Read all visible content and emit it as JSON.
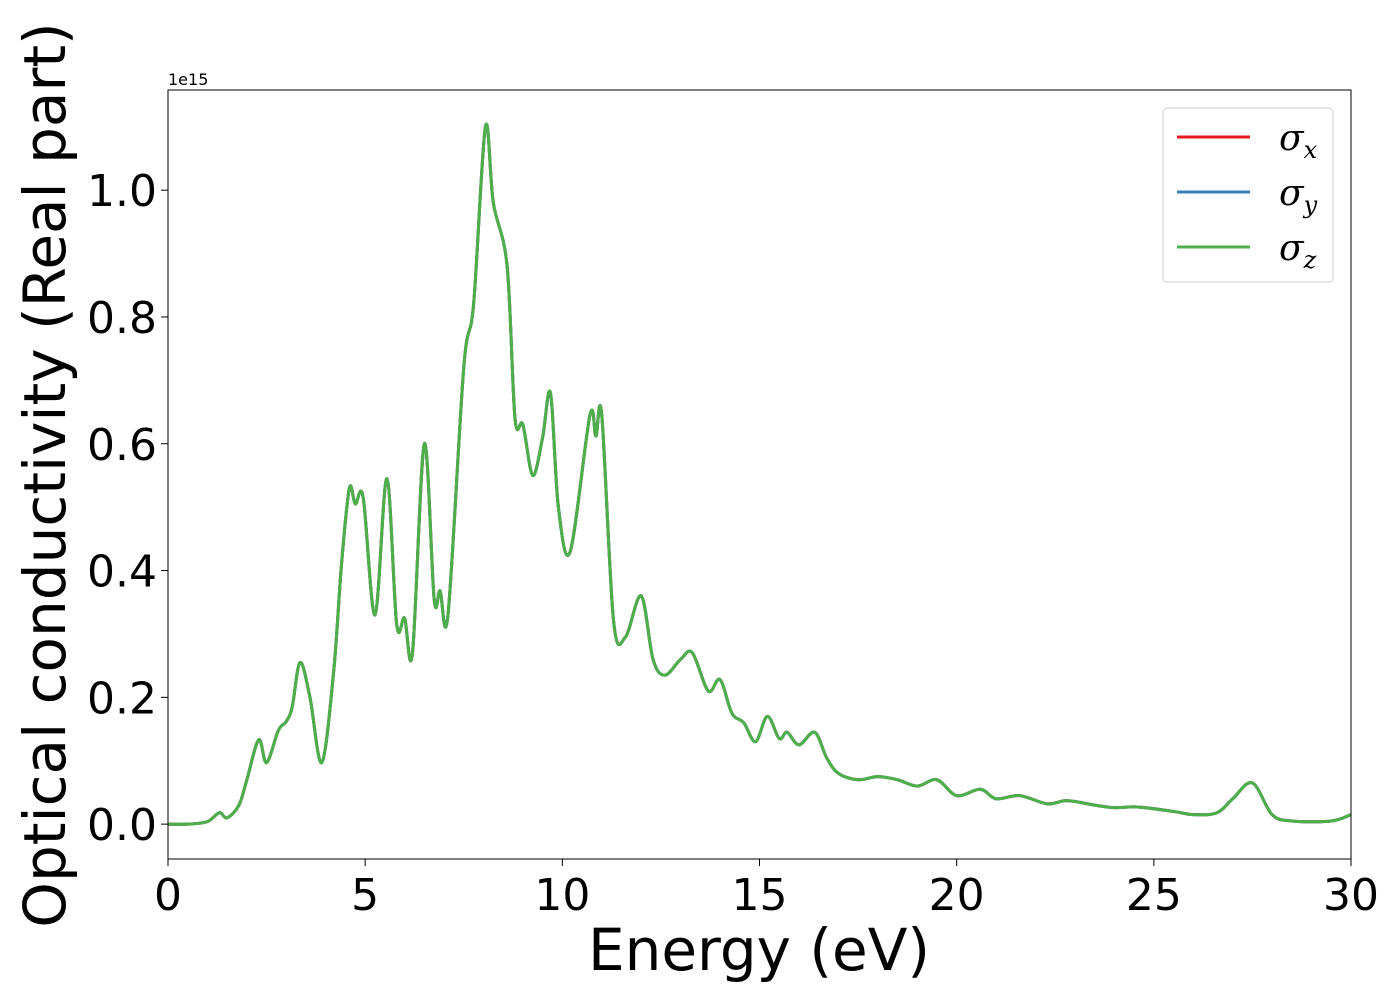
{
  "chart_data": {
    "type": "line",
    "xlabel": "Energy (eV)",
    "ylabel": "Optical conductivity (Real part)",
    "y_offset_text": "1e15",
    "xlim": [
      0,
      30
    ],
    "ylim": [
      -0.055,
      1.158
    ],
    "y_scale_factor": 1000000000000000.0,
    "grid": false,
    "legend_placement": "top-right",
    "x_ticks": [
      0,
      5,
      10,
      15,
      20,
      25,
      30
    ],
    "x_tick_labels": [
      "0",
      "5",
      "10",
      "15",
      "20",
      "25",
      "30"
    ],
    "y_ticks": [
      0.0,
      0.2,
      0.4,
      0.6,
      0.8,
      1.0
    ],
    "y_tick_labels": [
      "0.0",
      "0.2",
      "0.4",
      "0.6",
      "0.8",
      "1.0"
    ],
    "x": [
      0,
      0.5,
      1.0,
      1.3,
      1.5,
      1.8,
      2.0,
      2.3,
      2.5,
      2.8,
      3.0,
      3.15,
      3.35,
      3.6,
      3.9,
      4.2,
      4.4,
      4.6,
      4.75,
      4.95,
      5.25,
      5.55,
      5.8,
      6.0,
      6.2,
      6.5,
      6.75,
      6.9,
      7.1,
      7.5,
      7.75,
      8.05,
      8.25,
      8.6,
      8.8,
      9.0,
      9.25,
      9.5,
      9.7,
      9.9,
      10.2,
      10.7,
      10.85,
      11.0,
      11.3,
      11.6,
      12.0,
      12.3,
      12.6,
      13.0,
      13.3,
      13.7,
      14.0,
      14.3,
      14.6,
      14.9,
      15.2,
      15.5,
      15.7,
      16.0,
      16.4,
      16.7,
      17.0,
      17.5,
      18.0,
      18.5,
      19.0,
      19.5,
      20.0,
      20.6,
      21.0,
      21.6,
      22.3,
      22.8,
      23.5,
      24.0,
      24.6,
      25.5,
      26.0,
      26.6,
      27.0,
      27.5,
      28.0,
      28.5,
      29.5,
      30.0
    ],
    "series": [
      {
        "name": "σ_x",
        "color": "#e41a1c",
        "values": [
          0.0,
          0.0,
          0.004,
          0.018,
          0.01,
          0.03,
          0.07,
          0.133,
          0.097,
          0.148,
          0.162,
          0.185,
          0.255,
          0.2,
          0.097,
          0.24,
          0.41,
          0.53,
          0.505,
          0.515,
          0.33,
          0.545,
          0.315,
          0.325,
          0.27,
          0.6,
          0.355,
          0.368,
          0.33,
          0.72,
          0.82,
          1.1,
          0.98,
          0.88,
          0.64,
          0.63,
          0.55,
          0.61,
          0.68,
          0.5,
          0.43,
          0.645,
          0.612,
          0.645,
          0.32,
          0.295,
          0.36,
          0.26,
          0.235,
          0.26,
          0.27,
          0.21,
          0.228,
          0.175,
          0.16,
          0.13,
          0.17,
          0.135,
          0.145,
          0.125,
          0.145,
          0.105,
          0.08,
          0.07,
          0.075,
          0.07,
          0.06,
          0.07,
          0.045,
          0.055,
          0.04,
          0.045,
          0.032,
          0.037,
          0.03,
          0.026,
          0.027,
          0.02,
          0.015,
          0.018,
          0.04,
          0.065,
          0.015,
          0.005,
          0.005,
          0.015
        ]
      },
      {
        "name": "σ_y",
        "color": "#377eb8",
        "values": [
          0.0,
          0.0,
          0.004,
          0.018,
          0.01,
          0.03,
          0.07,
          0.133,
          0.097,
          0.148,
          0.162,
          0.185,
          0.255,
          0.2,
          0.097,
          0.24,
          0.41,
          0.53,
          0.505,
          0.515,
          0.33,
          0.545,
          0.315,
          0.325,
          0.27,
          0.6,
          0.355,
          0.368,
          0.33,
          0.72,
          0.82,
          1.1,
          0.98,
          0.88,
          0.64,
          0.63,
          0.55,
          0.61,
          0.68,
          0.5,
          0.43,
          0.645,
          0.612,
          0.645,
          0.32,
          0.295,
          0.36,
          0.26,
          0.235,
          0.26,
          0.27,
          0.21,
          0.228,
          0.175,
          0.16,
          0.13,
          0.17,
          0.135,
          0.145,
          0.125,
          0.145,
          0.105,
          0.08,
          0.07,
          0.075,
          0.07,
          0.06,
          0.07,
          0.045,
          0.055,
          0.04,
          0.045,
          0.032,
          0.037,
          0.03,
          0.026,
          0.027,
          0.02,
          0.015,
          0.018,
          0.04,
          0.065,
          0.015,
          0.005,
          0.005,
          0.015
        ]
      },
      {
        "name": "σ_z",
        "color": "#4daf4a",
        "values": [
          0.0,
          0.0,
          0.004,
          0.018,
          0.01,
          0.03,
          0.07,
          0.133,
          0.097,
          0.148,
          0.162,
          0.185,
          0.255,
          0.2,
          0.097,
          0.24,
          0.41,
          0.53,
          0.505,
          0.515,
          0.33,
          0.545,
          0.315,
          0.325,
          0.27,
          0.6,
          0.355,
          0.368,
          0.33,
          0.72,
          0.82,
          1.1,
          0.98,
          0.88,
          0.64,
          0.63,
          0.55,
          0.61,
          0.68,
          0.5,
          0.43,
          0.645,
          0.612,
          0.645,
          0.32,
          0.295,
          0.36,
          0.26,
          0.235,
          0.26,
          0.27,
          0.21,
          0.228,
          0.175,
          0.16,
          0.13,
          0.17,
          0.135,
          0.145,
          0.125,
          0.145,
          0.105,
          0.08,
          0.07,
          0.075,
          0.07,
          0.06,
          0.07,
          0.045,
          0.055,
          0.04,
          0.045,
          0.032,
          0.037,
          0.03,
          0.026,
          0.027,
          0.02,
          0.015,
          0.018,
          0.04,
          0.065,
          0.015,
          0.005,
          0.005,
          0.015
        ]
      }
    ],
    "legend": [
      {
        "symbol": "σ",
        "subscript": "x",
        "color": "#e41a1c"
      },
      {
        "symbol": "σ",
        "subscript": "y",
        "color": "#377eb8"
      },
      {
        "symbol": "σ",
        "subscript": "z",
        "color": "#4daf4a"
      }
    ]
  }
}
